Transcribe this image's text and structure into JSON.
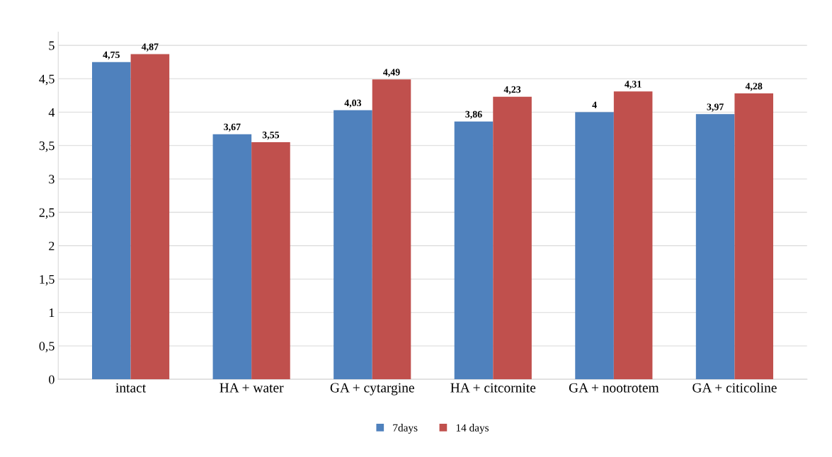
{
  "chart_data": {
    "type": "bar",
    "categories": [
      "intact",
      "HA + water",
      "GA + cytargine",
      "HA + citcornite",
      "GA + nootrotem",
      "GA + citicoline"
    ],
    "series": [
      {
        "name": "7days",
        "color": "#4f81bd",
        "values": [
          4.75,
          3.67,
          4.03,
          3.86,
          4.0,
          3.97
        ],
        "value_labels": [
          "4,75",
          "3,67",
          "4,03",
          "3,86",
          "4",
          "3,97"
        ]
      },
      {
        "name": "14 days",
        "color": "#c0504d",
        "values": [
          4.87,
          3.55,
          4.49,
          4.23,
          4.31,
          4.28
        ],
        "value_labels": [
          "4,87",
          "3,55",
          "4,49",
          "4,23",
          "4,31",
          "4,28"
        ]
      }
    ],
    "ylim": [
      0,
      5.2
    ],
    "yticks": [
      0,
      {
        "value": 0.5,
        "label": "0,5"
      },
      1,
      {
        "value": 1.5,
        "label": "1,5"
      },
      2,
      {
        "value": 2.5,
        "label": "2,5"
      },
      3,
      {
        "value": 3.5,
        "label": "3,5"
      },
      4,
      {
        "value": 4.5,
        "label": "4,5"
      },
      5
    ],
    "grid": "y",
    "legend": "bottom"
  }
}
